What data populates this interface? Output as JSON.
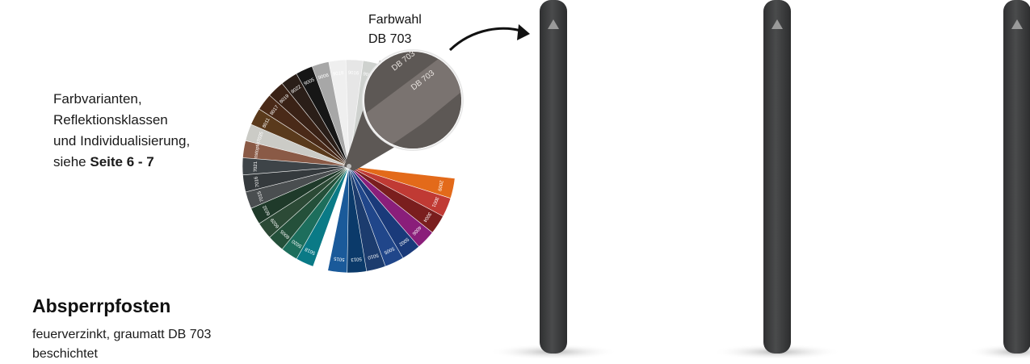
{
  "intro": {
    "line1": "Farbvarianten,",
    "line2": "Reflektionsklassen",
    "line3": "und Individualisierung,",
    "line4_prefix": "siehe ",
    "line4_bold": "Seite 6 - 7"
  },
  "color_choice": {
    "label1": "Farbwahl",
    "label2": "DB 703"
  },
  "product": {
    "title": "Absperrpfosten",
    "line1": "feuerverzinkt, graumatt DB 703",
    "line2": "beschichtet"
  },
  "swatch": {
    "selected": "DB 703",
    "selected_color": "#5d5855",
    "codes_upper": [
      "9006",
      "9016",
      "9018",
      "9006",
      "9005",
      "8022",
      "8019",
      "8017",
      "8011",
      "7035",
      "Rostoptik",
      "7021",
      "7016",
      "7015",
      "6032",
      "6029",
      "6005",
      "5020",
      "5018"
    ],
    "codes_lower": [
      "5015",
      "5013",
      "5010",
      "5005",
      "5002",
      "4006",
      "3004",
      "3001",
      "2009"
    ]
  },
  "colors": {
    "post": "#3d3e3f",
    "arrow": "#111111"
  }
}
